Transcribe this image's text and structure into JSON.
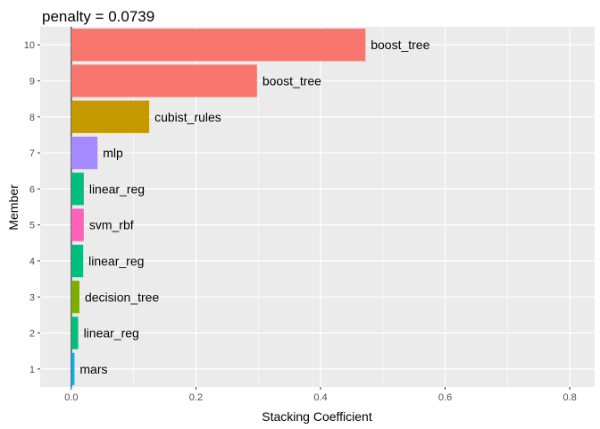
{
  "chart_data": {
    "type": "bar",
    "orientation": "horizontal",
    "title": "penalty = 0.0739",
    "xlabel": "Stacking Coefficient",
    "ylabel": "Member",
    "xlim": [
      -0.05,
      0.84
    ],
    "xticks": [
      "0.0",
      "0.2",
      "0.4",
      "0.6",
      "0.8"
    ],
    "xtick_values": [
      0.0,
      0.2,
      0.4,
      0.6,
      0.8
    ],
    "grid": true,
    "legend": "none",
    "categories": [
      "1",
      "2",
      "3",
      "4",
      "5",
      "6",
      "7",
      "8",
      "9",
      "10"
    ],
    "values": [
      0.005,
      0.011,
      0.013,
      0.019,
      0.02,
      0.02,
      0.042,
      0.125,
      0.298,
      0.472
    ],
    "labels": [
      "mars",
      "linear_reg",
      "decision_tree",
      "linear_reg",
      "svm_rbf",
      "linear_reg",
      "mlp",
      "cubist_rules",
      "boost_tree",
      "boost_tree"
    ],
    "colors": [
      "#00B0F6",
      "#00BF7D",
      "#7CAE00",
      "#00BF7D",
      "#FF62BC",
      "#00BF7D",
      "#A58AFF",
      "#C49A00",
      "#F8766D",
      "#F8766D"
    ]
  }
}
